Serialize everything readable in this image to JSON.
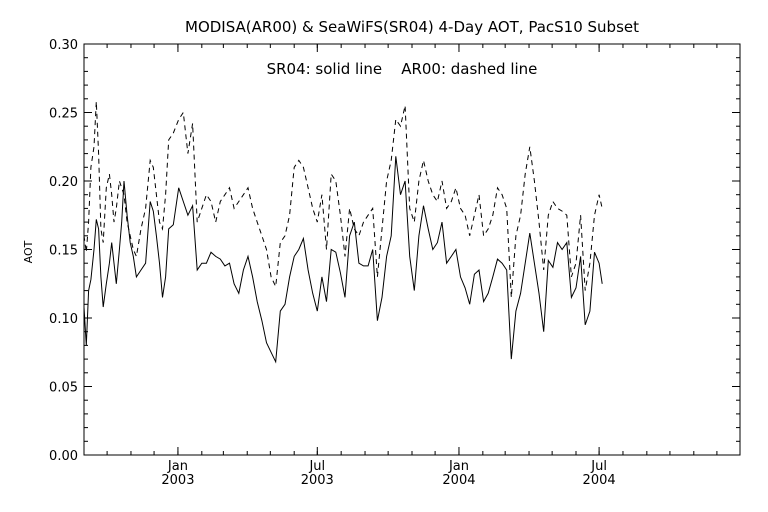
{
  "chart_data": {
    "type": "line",
    "title": "MODISA(AR00) & SeaWiFS(SR04) 4-Day AOT, PacS10 Subset",
    "annotation": "SR04: solid line    AR00: dashed line",
    "xlabel": "",
    "ylabel": "AOT",
    "xlim": [
      "2002-09-01",
      "2004-12-31"
    ],
    "ylim": [
      0.0,
      0.3
    ],
    "y_ticks": [
      "0.00",
      "0.05",
      "0.10",
      "0.15",
      "0.20",
      "0.25",
      "0.30"
    ],
    "x_ticks": [
      {
        "date": "2003-01-01",
        "month": "Jan",
        "year": "2003"
      },
      {
        "date": "2003-07-01",
        "month": "Jul",
        "year": "2003"
      },
      {
        "date": "2004-01-01",
        "month": "Jan",
        "year": "2004"
      },
      {
        "date": "2004-07-01",
        "month": "Jul",
        "year": "2004"
      }
    ],
    "grid": false,
    "series": [
      {
        "name": "SR04",
        "style": "solid",
        "color": "#000000",
        "points": [
          [
            "2002-09-01",
            0.108
          ],
          [
            "2002-09-04",
            0.08
          ],
          [
            "2002-09-07",
            0.12
          ],
          [
            "2002-09-10",
            0.128
          ],
          [
            "2002-09-14",
            0.15
          ],
          [
            "2002-09-17",
            0.172
          ],
          [
            "2002-09-20",
            0.165
          ],
          [
            "2002-09-23",
            0.13
          ],
          [
            "2002-09-26",
            0.108
          ],
          [
            "2002-09-30",
            0.125
          ],
          [
            "2002-10-04",
            0.14
          ],
          [
            "2002-10-07",
            0.155
          ],
          [
            "2002-10-10",
            0.14
          ],
          [
            "2002-10-13",
            0.125
          ],
          [
            "2002-10-17",
            0.15
          ],
          [
            "2002-10-20",
            0.17
          ],
          [
            "2002-10-23",
            0.2
          ],
          [
            "2002-10-27",
            0.175
          ],
          [
            "2002-10-31",
            0.155
          ],
          [
            "2002-11-04",
            0.145
          ],
          [
            "2002-11-08",
            0.13
          ],
          [
            "2002-11-14",
            0.135
          ],
          [
            "2002-11-20",
            0.14
          ],
          [
            "2002-11-26",
            0.185
          ],
          [
            "2002-11-30",
            0.178
          ],
          [
            "2002-12-04",
            0.16
          ],
          [
            "2002-12-08",
            0.14
          ],
          [
            "2002-12-12",
            0.115
          ],
          [
            "2002-12-16",
            0.13
          ],
          [
            "2002-12-20",
            0.165
          ],
          [
            "2002-12-26",
            0.168
          ],
          [
            "2003-01-02",
            0.195
          ],
          [
            "2003-01-08",
            0.185
          ],
          [
            "2003-01-14",
            0.175
          ],
          [
            "2003-01-20",
            0.182
          ],
          [
            "2003-01-26",
            0.135
          ],
          [
            "2003-02-01",
            0.14
          ],
          [
            "2003-02-07",
            0.14
          ],
          [
            "2003-02-13",
            0.148
          ],
          [
            "2003-02-19",
            0.145
          ],
          [
            "2003-02-25",
            0.143
          ],
          [
            "2003-03-03",
            0.138
          ],
          [
            "2003-03-09",
            0.14
          ],
          [
            "2003-03-15",
            0.125
          ],
          [
            "2003-03-21",
            0.118
          ],
          [
            "2003-03-27",
            0.135
          ],
          [
            "2003-04-02",
            0.145
          ],
          [
            "2003-04-08",
            0.13
          ],
          [
            "2003-04-14",
            0.112
          ],
          [
            "2003-04-20",
            0.098
          ],
          [
            "2003-04-26",
            0.082
          ],
          [
            "2003-05-02",
            0.075
          ],
          [
            "2003-05-08",
            0.068
          ],
          [
            "2003-05-14",
            0.105
          ],
          [
            "2003-05-20",
            0.11
          ],
          [
            "2003-05-26",
            0.13
          ],
          [
            "2003-06-01",
            0.145
          ],
          [
            "2003-06-07",
            0.15
          ],
          [
            "2003-06-13",
            0.158
          ],
          [
            "2003-06-19",
            0.135
          ],
          [
            "2003-06-25",
            0.118
          ],
          [
            "2003-07-01",
            0.105
          ],
          [
            "2003-07-07",
            0.13
          ],
          [
            "2003-07-13",
            0.112
          ],
          [
            "2003-07-19",
            0.15
          ],
          [
            "2003-07-25",
            0.148
          ],
          [
            "2003-07-31",
            0.133
          ],
          [
            "2003-08-06",
            0.115
          ],
          [
            "2003-08-12",
            0.16
          ],
          [
            "2003-08-18",
            0.17
          ],
          [
            "2003-08-24",
            0.14
          ],
          [
            "2003-08-30",
            0.138
          ],
          [
            "2003-09-05",
            0.138
          ],
          [
            "2003-09-11",
            0.15
          ],
          [
            "2003-09-17",
            0.098
          ],
          [
            "2003-09-23",
            0.115
          ],
          [
            "2003-09-29",
            0.145
          ],
          [
            "2003-10-05",
            0.16
          ],
          [
            "2003-10-11",
            0.218
          ],
          [
            "2003-10-17",
            0.19
          ],
          [
            "2003-10-23",
            0.2
          ],
          [
            "2003-10-29",
            0.145
          ],
          [
            "2003-11-04",
            0.12
          ],
          [
            "2003-11-10",
            0.16
          ],
          [
            "2003-11-16",
            0.182
          ],
          [
            "2003-11-22",
            0.165
          ],
          [
            "2003-11-28",
            0.15
          ],
          [
            "2003-12-04",
            0.155
          ],
          [
            "2003-12-10",
            0.17
          ],
          [
            "2003-12-16",
            0.14
          ],
          [
            "2003-12-22",
            0.145
          ],
          [
            "2003-12-28",
            0.15
          ],
          [
            "2004-01-03",
            0.13
          ],
          [
            "2004-01-09",
            0.122
          ],
          [
            "2004-01-15",
            0.11
          ],
          [
            "2004-01-21",
            0.132
          ],
          [
            "2004-01-27",
            0.135
          ],
          [
            "2004-02-02",
            0.112
          ],
          [
            "2004-02-08",
            0.118
          ],
          [
            "2004-02-14",
            0.13
          ],
          [
            "2004-02-20",
            0.143
          ],
          [
            "2004-02-26",
            0.14
          ],
          [
            "2004-03-03",
            0.135
          ],
          [
            "2004-03-09",
            0.07
          ],
          [
            "2004-03-15",
            0.105
          ],
          [
            "2004-03-21",
            0.118
          ],
          [
            "2004-03-27",
            0.14
          ],
          [
            "2004-04-02",
            0.162
          ],
          [
            "2004-04-08",
            0.14
          ],
          [
            "2004-04-14",
            0.118
          ],
          [
            "2004-04-20",
            0.09
          ],
          [
            "2004-04-26",
            0.142
          ],
          [
            "2004-05-02",
            0.137
          ],
          [
            "2004-05-08",
            0.155
          ],
          [
            "2004-05-14",
            0.15
          ],
          [
            "2004-05-20",
            0.155
          ],
          [
            "2004-05-26",
            0.115
          ],
          [
            "2004-06-01",
            0.122
          ],
          [
            "2004-06-07",
            0.145
          ],
          [
            "2004-06-13",
            0.095
          ],
          [
            "2004-06-19",
            0.105
          ],
          [
            "2004-06-25",
            0.148
          ],
          [
            "2004-07-01",
            0.14
          ],
          [
            "2004-07-05",
            0.125
          ]
        ]
      },
      {
        "name": "AR00",
        "style": "dashed",
        "color": "#000000",
        "points": [
          [
            "2002-09-01",
            0.16
          ],
          [
            "2002-09-04",
            0.148
          ],
          [
            "2002-09-07",
            0.17
          ],
          [
            "2002-09-10",
            0.21
          ],
          [
            "2002-09-14",
            0.225
          ],
          [
            "2002-09-17",
            0.258
          ],
          [
            "2002-09-20",
            0.22
          ],
          [
            "2002-09-23",
            0.165
          ],
          [
            "2002-09-26",
            0.155
          ],
          [
            "2002-09-30",
            0.195
          ],
          [
            "2002-10-04",
            0.205
          ],
          [
            "2002-10-07",
            0.19
          ],
          [
            "2002-10-10",
            0.17
          ],
          [
            "2002-10-13",
            0.18
          ],
          [
            "2002-10-17",
            0.2
          ],
          [
            "2002-10-20",
            0.195
          ],
          [
            "2002-10-23",
            0.19
          ],
          [
            "2002-10-27",
            0.17
          ],
          [
            "2002-10-31",
            0.16
          ],
          [
            "2002-11-04",
            0.15
          ],
          [
            "2002-11-08",
            0.145
          ],
          [
            "2002-11-14",
            0.165
          ],
          [
            "2002-11-20",
            0.18
          ],
          [
            "2002-11-26",
            0.215
          ],
          [
            "2002-11-30",
            0.21
          ],
          [
            "2002-12-04",
            0.19
          ],
          [
            "2002-12-08",
            0.17
          ],
          [
            "2002-12-12",
            0.165
          ],
          [
            "2002-12-16",
            0.19
          ],
          [
            "2002-12-20",
            0.23
          ],
          [
            "2002-12-26",
            0.235
          ],
          [
            "2003-01-02",
            0.245
          ],
          [
            "2003-01-08",
            0.25
          ],
          [
            "2003-01-14",
            0.22
          ],
          [
            "2003-01-20",
            0.242
          ],
          [
            "2003-01-26",
            0.17
          ],
          [
            "2003-02-01",
            0.18
          ],
          [
            "2003-02-07",
            0.19
          ],
          [
            "2003-02-13",
            0.185
          ],
          [
            "2003-02-19",
            0.17
          ],
          [
            "2003-02-25",
            0.185
          ],
          [
            "2003-03-03",
            0.19
          ],
          [
            "2003-03-09",
            0.195
          ],
          [
            "2003-03-15",
            0.18
          ],
          [
            "2003-03-21",
            0.185
          ],
          [
            "2003-03-27",
            0.19
          ],
          [
            "2003-04-02",
            0.195
          ],
          [
            "2003-04-08",
            0.18
          ],
          [
            "2003-04-14",
            0.17
          ],
          [
            "2003-04-20",
            0.16
          ],
          [
            "2003-04-26",
            0.15
          ],
          [
            "2003-05-02",
            0.13
          ],
          [
            "2003-05-08",
            0.123
          ],
          [
            "2003-05-14",
            0.155
          ],
          [
            "2003-05-20",
            0.16
          ],
          [
            "2003-05-26",
            0.175
          ],
          [
            "2003-06-01",
            0.21
          ],
          [
            "2003-06-07",
            0.215
          ],
          [
            "2003-06-13",
            0.21
          ],
          [
            "2003-06-19",
            0.195
          ],
          [
            "2003-06-25",
            0.18
          ],
          [
            "2003-07-01",
            0.17
          ],
          [
            "2003-07-07",
            0.19
          ],
          [
            "2003-07-13",
            0.15
          ],
          [
            "2003-07-19",
            0.205
          ],
          [
            "2003-07-25",
            0.2
          ],
          [
            "2003-07-31",
            0.175
          ],
          [
            "2003-08-06",
            0.145
          ],
          [
            "2003-08-12",
            0.18
          ],
          [
            "2003-08-18",
            0.165
          ],
          [
            "2003-08-24",
            0.16
          ],
          [
            "2003-08-30",
            0.17
          ],
          [
            "2003-09-05",
            0.175
          ],
          [
            "2003-09-11",
            0.18
          ],
          [
            "2003-09-17",
            0.13
          ],
          [
            "2003-09-23",
            0.165
          ],
          [
            "2003-09-29",
            0.2
          ],
          [
            "2003-10-05",
            0.215
          ],
          [
            "2003-10-11",
            0.245
          ],
          [
            "2003-10-17",
            0.24
          ],
          [
            "2003-10-23",
            0.255
          ],
          [
            "2003-10-29",
            0.18
          ],
          [
            "2003-11-04",
            0.17
          ],
          [
            "2003-11-10",
            0.2
          ],
          [
            "2003-11-16",
            0.215
          ],
          [
            "2003-11-22",
            0.2
          ],
          [
            "2003-11-28",
            0.19
          ],
          [
            "2003-12-04",
            0.185
          ],
          [
            "2003-12-10",
            0.2
          ],
          [
            "2003-12-16",
            0.18
          ],
          [
            "2003-12-22",
            0.185
          ],
          [
            "2003-12-28",
            0.195
          ],
          [
            "2004-01-03",
            0.18
          ],
          [
            "2004-01-09",
            0.175
          ],
          [
            "2004-01-15",
            0.16
          ],
          [
            "2004-01-21",
            0.175
          ],
          [
            "2004-01-27",
            0.19
          ],
          [
            "2004-02-02",
            0.16
          ],
          [
            "2004-02-08",
            0.165
          ],
          [
            "2004-02-14",
            0.175
          ],
          [
            "2004-02-20",
            0.195
          ],
          [
            "2004-02-26",
            0.19
          ],
          [
            "2004-03-03",
            0.18
          ],
          [
            "2004-03-09",
            0.115
          ],
          [
            "2004-03-15",
            0.16
          ],
          [
            "2004-03-21",
            0.175
          ],
          [
            "2004-03-27",
            0.205
          ],
          [
            "2004-04-02",
            0.225
          ],
          [
            "2004-04-08",
            0.2
          ],
          [
            "2004-04-14",
            0.17
          ],
          [
            "2004-04-20",
            0.135
          ],
          [
            "2004-04-26",
            0.175
          ],
          [
            "2004-05-02",
            0.185
          ],
          [
            "2004-05-08",
            0.18
          ],
          [
            "2004-05-14",
            0.178
          ],
          [
            "2004-05-20",
            0.175
          ],
          [
            "2004-05-26",
            0.13
          ],
          [
            "2004-06-01",
            0.14
          ],
          [
            "2004-06-07",
            0.175
          ],
          [
            "2004-06-13",
            0.12
          ],
          [
            "2004-06-19",
            0.14
          ],
          [
            "2004-06-25",
            0.175
          ],
          [
            "2004-07-01",
            0.19
          ],
          [
            "2004-07-05",
            0.18
          ]
        ]
      }
    ]
  }
}
